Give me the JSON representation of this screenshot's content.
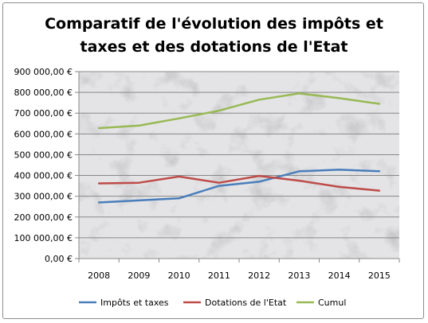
{
  "chart_data": {
    "type": "line",
    "title_line1": "Comparatif de l'évolution des impôts et",
    "title_line2": "taxes et des dotations de l'Etat",
    "categories": [
      "2008",
      "2009",
      "2010",
      "2011",
      "2012",
      "2013",
      "2014",
      "2015"
    ],
    "series": [
      {
        "name": "Impôts et taxes",
        "color": "#4a7ebb",
        "values": [
          270000,
          280000,
          290000,
          350000,
          370000,
          420000,
          428000,
          420000
        ]
      },
      {
        "name": "Dotations de l'Etat",
        "color": "#be4b48",
        "values": [
          362000,
          365000,
          395000,
          365000,
          398000,
          375000,
          345000,
          327000
        ]
      },
      {
        "name": "Cumul",
        "color": "#98b954",
        "values": [
          628000,
          640000,
          675000,
          712000,
          765000,
          795000,
          772000,
          745000
        ]
      }
    ],
    "y_ticks": [
      "0,00 €",
      "100 000,00 €",
      "200 000,00 €",
      "300 000,00 €",
      "400 000,00 €",
      "500 000,00 €",
      "600 000,00 €",
      "700 000,00 €",
      "800 000,00 €",
      "900 000,00 €"
    ],
    "ylim": [
      0,
      900000
    ],
    "xlabel": "",
    "ylabel": "",
    "grid": true,
    "legend_position": "bottom"
  }
}
